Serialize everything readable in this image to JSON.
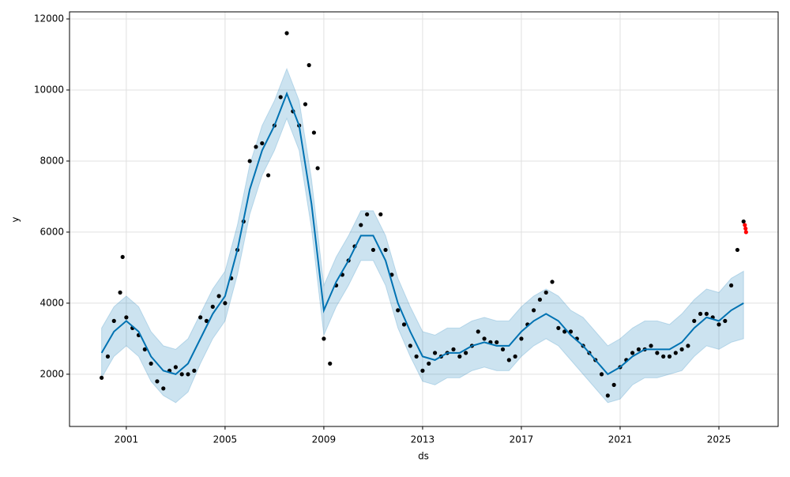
{
  "chart_data": {
    "type": "scatter",
    "x_label": "ds",
    "y_label": "y",
    "xlim": [
      1998.7,
      2027.4
    ],
    "xticks": [
      2001,
      2005,
      2009,
      2013,
      2017,
      2021,
      2025
    ],
    "ylim": [
      530,
      12200
    ],
    "yticks": [
      2000,
      4000,
      6000,
      8000,
      10000,
      12000
    ],
    "grid": true,
    "series": [
      {
        "type": "band",
        "color": "#0072b2",
        "x": [
          2000,
          2000.5,
          2001,
          2001.5,
          2002,
          2002.5,
          2003,
          2003.5,
          2004,
          2004.5,
          2005,
          2005.5,
          2006,
          2006.5,
          2007,
          2007.5,
          2008,
          2008.5,
          2009,
          2009.5,
          2010,
          2010.5,
          2011,
          2011.5,
          2012,
          2012.5,
          2013,
          2013.5,
          2014,
          2014.5,
          2015,
          2015.5,
          2016,
          2016.5,
          2017,
          2017.5,
          2018,
          2018.5,
          2019,
          2019.5,
          2020,
          2020.5,
          2021,
          2021.5,
          2022,
          2022.5,
          2023,
          2023.5,
          2024,
          2024.5,
          2025,
          2025.5,
          2026
        ],
        "lower": [
          1900,
          2500,
          2800,
          2500,
          1800,
          1400,
          1200,
          1500,
          2300,
          3000,
          3500,
          4800,
          6500,
          7600,
          8300,
          9200,
          8300,
          6100,
          3100,
          3900,
          4500,
          5200,
          5200,
          4500,
          3300,
          2500,
          1800,
          1700,
          1900,
          1900,
          2100,
          2200,
          2100,
          2100,
          2500,
          2800,
          3000,
          2800,
          2400,
          2000,
          1600,
          1200,
          1300,
          1700,
          1900,
          1900,
          2000,
          2100,
          2500,
          2800,
          2700,
          2900,
          3000
        ],
        "upper": [
          3300,
          3900,
          4200,
          3900,
          3200,
          2800,
          2700,
          3000,
          3700,
          4400,
          4900,
          6200,
          7900,
          9000,
          9700,
          10600,
          9700,
          7500,
          4500,
          5300,
          5900,
          6600,
          6600,
          5900,
          4700,
          3900,
          3200,
          3100,
          3300,
          3300,
          3500,
          3600,
          3500,
          3500,
          3900,
          4200,
          4400,
          4200,
          3800,
          3600,
          3200,
          2800,
          3000,
          3300,
          3500,
          3500,
          3400,
          3700,
          4100,
          4400,
          4300,
          4700,
          4900
        ]
      },
      {
        "type": "scatter",
        "color": "#000000",
        "x": [
          2000,
          2000.25,
          2000.5,
          2000.75,
          2000.85,
          2001,
          2001.25,
          2001.5,
          2001.75,
          2002,
          2002.25,
          2002.5,
          2002.75,
          2003,
          2003.25,
          2003.5,
          2003.75,
          2004,
          2004.25,
          2004.5,
          2004.75,
          2005,
          2005.25,
          2005.5,
          2005.75,
          2006,
          2006.25,
          2006.5,
          2006.75,
          2007,
          2007.25,
          2007.5,
          2007.75,
          2008,
          2008.25,
          2008.4,
          2008.6,
          2008.75,
          2009,
          2009.25,
          2009.5,
          2009.75,
          2010,
          2010.25,
          2010.5,
          2010.75,
          2011,
          2011.3,
          2011.5,
          2011.75,
          2012,
          2012.25,
          2012.5,
          2012.75,
          2013,
          2013.25,
          2013.5,
          2013.75,
          2014,
          2014.25,
          2014.5,
          2014.75,
          2015,
          2015.25,
          2015.5,
          2015.75,
          2016,
          2016.25,
          2016.5,
          2016.75,
          2017,
          2017.25,
          2017.5,
          2017.75,
          2018,
          2018.25,
          2018.5,
          2018.75,
          2019,
          2019.25,
          2019.5,
          2019.75,
          2020,
          2020.25,
          2020.5,
          2020.75,
          2021,
          2021.25,
          2021.5,
          2021.75,
          2022,
          2022.25,
          2022.5,
          2022.75,
          2023,
          2023.25,
          2023.5,
          2023.75,
          2024,
          2024.25,
          2024.5,
          2024.75,
          2025,
          2025.25,
          2025.5,
          2025.75,
          2026
        ],
        "values": [
          1900,
          2500,
          3500,
          4300,
          5300,
          3600,
          3300,
          3100,
          2700,
          2300,
          1800,
          1600,
          2100,
          2200,
          2000,
          2000,
          2100,
          3600,
          3500,
          3900,
          4200,
          4000,
          4700,
          5500,
          6300,
          8000,
          8400,
          8500,
          7600,
          9000,
          9800,
          11600,
          9400,
          9000,
          9600,
          10700,
          8800,
          7800,
          3000,
          2300,
          4500,
          4800,
          5200,
          5600,
          6200,
          6500,
          5500,
          6500,
          5500,
          4800,
          3800,
          3400,
          2800,
          2500,
          2100,
          2300,
          2600,
          2500,
          2600,
          2700,
          2500,
          2600,
          2800,
          3200,
          3000,
          2900,
          2900,
          2700,
          2400,
          2500,
          3000,
          3400,
          3800,
          4100,
          4300,
          4600,
          3300,
          3200,
          3200,
          3000,
          2800,
          2600,
          2400,
          2000,
          1400,
          1700,
          2200,
          2400,
          2600,
          2700,
          2700,
          2800,
          2600,
          2500,
          2500,
          2600,
          2700,
          2800,
          3500,
          3700,
          3700,
          3600,
          3400,
          3500,
          4500,
          5500,
          6300
        ]
      },
      {
        "type": "line",
        "color": "#0072b2",
        "x": [
          2000,
          2000.5,
          2001,
          2001.5,
          2002,
          2002.5,
          2003,
          2003.5,
          2004,
          2004.5,
          2005,
          2005.5,
          2006,
          2006.5,
          2007,
          2007.5,
          2008,
          2008.5,
          2009,
          2009.5,
          2010,
          2010.5,
          2011,
          2011.5,
          2012,
          2012.5,
          2013,
          2013.5,
          2014,
          2014.5,
          2015,
          2015.5,
          2016,
          2016.5,
          2017,
          2017.5,
          2018,
          2018.5,
          2019,
          2019.5,
          2020,
          2020.5,
          2021,
          2021.5,
          2022,
          2022.5,
          2023,
          2023.5,
          2024,
          2024.5,
          2025,
          2025.5,
          2026
        ],
        "values": [
          2600,
          3200,
          3500,
          3200,
          2500,
          2100,
          2000,
          2300,
          3000,
          3700,
          4200,
          5500,
          7200,
          8300,
          9000,
          9900,
          9000,
          6800,
          3800,
          4600,
          5200,
          5900,
          5900,
          5200,
          4000,
          3200,
          2500,
          2400,
          2600,
          2600,
          2800,
          2900,
          2800,
          2800,
          3200,
          3500,
          3700,
          3500,
          3100,
          2800,
          2400,
          2000,
          2200,
          2500,
          2700,
          2700,
          2700,
          2900,
          3300,
          3600,
          3500,
          3800,
          4000
        ]
      },
      {
        "type": "scatter",
        "color": "#ff0000",
        "x": [
          2026.05,
          2026.08,
          2026.1
        ],
        "values": [
          6200,
          6100,
          6000
        ]
      }
    ]
  }
}
